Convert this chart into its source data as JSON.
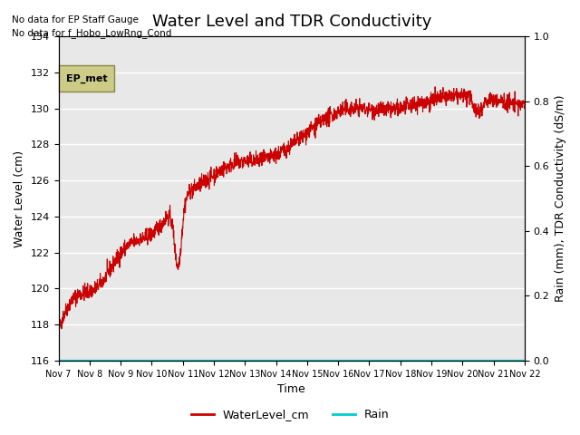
{
  "title": "Water Level and TDR Conductivity",
  "xlabel": "Time",
  "ylabel_left": "Water Level (cm)",
  "ylabel_right": "Rain (mm), TDR Conductivity (dS/m)",
  "annotation_lines": [
    "No data for EP Staff Gauge",
    "No data for f_Hobo_LowRng_Cond"
  ],
  "legend_box_label": "EP_met",
  "ylim_left": [
    116,
    134
  ],
  "ylim_right": [
    0.0,
    1.0
  ],
  "yticks_left": [
    116,
    118,
    120,
    122,
    124,
    126,
    128,
    130,
    132,
    134
  ],
  "yticks_right": [
    0.0,
    0.2,
    0.4,
    0.6,
    0.8,
    1.0
  ],
  "water_color": "#cc0000",
  "rain_color": "#00cccc",
  "background_color": "#e8e8e8",
  "grid_color": "#ffffff",
  "title_fontsize": 13,
  "label_fontsize": 9,
  "tick_fontsize": 8,
  "legend_box_facecolor": "#cccc88",
  "legend_box_edgecolor": "#888844"
}
